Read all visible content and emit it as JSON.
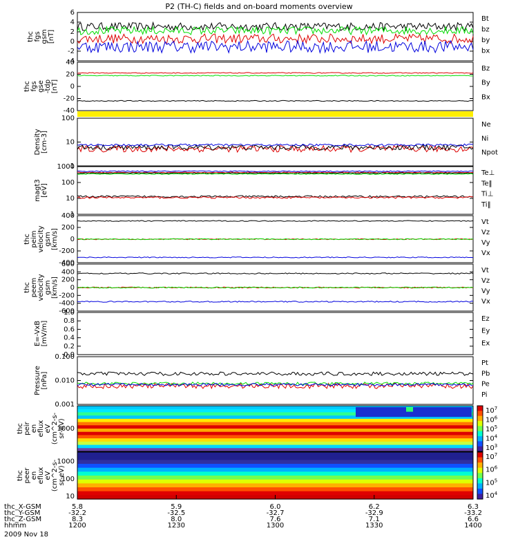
{
  "title": "P2 (TH-C) fields and on-board moments overview",
  "date": "2009 Nov 18",
  "colors": {
    "black": "#000000",
    "red": "#dd0000",
    "green": "#00dd00",
    "blue": "#0000dd",
    "yellow": "#ffee00"
  },
  "chart_data": [
    {
      "type": "line",
      "ylabel": [
        "thc",
        "fgs",
        "gsm",
        "[nT]"
      ],
      "yticks": [
        "6",
        "4",
        "2",
        "0",
        "-2",
        "-4"
      ],
      "ylim": [
        -5,
        7
      ],
      "series": [
        {
          "name": "Bt",
          "color": "black",
          "level": 3.5,
          "noise": 1.0
        },
        {
          "name": "bz",
          "color": "red",
          "level": 0.5,
          "noise": 1.2
        },
        {
          "name": "by",
          "color": "green",
          "level": 2.5,
          "noise": 1.0
        },
        {
          "name": "bx",
          "color": "blue",
          "level": -1.5,
          "noise": 1.5
        }
      ]
    },
    {
      "type": "line",
      "ylabel": [
        "thc",
        "fgs",
        "gse",
        "-tdp",
        "[nT]"
      ],
      "yticks": [
        "40",
        "20",
        "0",
        "-20",
        "-40"
      ],
      "ylim": [
        -50,
        40
      ],
      "series": [
        {
          "name": "Bz",
          "color": "red",
          "level": 20,
          "noise": 0.8
        },
        {
          "name": "By",
          "color": "green",
          "level": 15,
          "noise": 0.8
        },
        {
          "name": "Bx",
          "color": "black",
          "level": -32,
          "noise": 0.8
        }
      ]
    },
    {
      "type": "line",
      "ylabel": [
        "Density",
        "[cm-3]"
      ],
      "yticks": [
        "100",
        "10",
        "1"
      ],
      "log": true,
      "ylim": [
        1,
        150
      ],
      "series": [
        {
          "name": "Ne",
          "color": "red",
          "level": 6,
          "noise": 0.15
        },
        {
          "name": "Ni",
          "color": "black",
          "level": 7,
          "noise": 0.12
        },
        {
          "name": "Npot",
          "color": "blue",
          "level": 9,
          "noise": 0.05
        }
      ]
    },
    {
      "type": "line",
      "ylabel": [
        "magt3",
        "[eV]"
      ],
      "yticks": [
        "1000",
        "100",
        "10",
        "1"
      ],
      "log": true,
      "ylim": [
        1,
        1200
      ],
      "series": [
        {
          "name": "Te⊥",
          "color": "red",
          "level": 500,
          "noise": 0.03
        },
        {
          "name": "Te‖",
          "color": "black",
          "level": 450,
          "noise": 0.03
        },
        {
          "name": "Ti⊥",
          "color": "blue",
          "level": 600,
          "noise": 0.03
        },
        {
          "name": "Ti‖",
          "color": "green",
          "level": 400,
          "noise": 0.03
        },
        {
          "name": "",
          "color": "black",
          "level": 14,
          "noise": 0.06
        },
        {
          "name": "",
          "color": "red",
          "level": 12,
          "noise": 0.06
        }
      ]
    },
    {
      "type": "line",
      "ylabel": [
        "thc",
        "peim",
        "velocity",
        "gsm",
        "[km/s]"
      ],
      "yticks": [
        "400",
        "200",
        "0",
        "-200",
        "-400"
      ],
      "ylim": [
        -400,
        400
      ],
      "series": [
        {
          "name": "Vt",
          "color": "black",
          "level": 310,
          "noise": 8
        },
        {
          "name": "Vz",
          "color": "red",
          "level": 0,
          "noise": 8
        },
        {
          "name": "Vy",
          "color": "green",
          "level": 0,
          "noise": 8
        },
        {
          "name": "Vx",
          "color": "blue",
          "level": -310,
          "noise": 8
        }
      ]
    },
    {
      "type": "line",
      "ylabel": [
        "thc",
        "peem",
        "velocity",
        "gsm",
        "[km/s]"
      ],
      "yticks": [
        "600",
        "400",
        "200",
        "0",
        "-200",
        "-400",
        "-600"
      ],
      "ylim": [
        -600,
        600
      ],
      "series": [
        {
          "name": "Vt",
          "color": "black",
          "level": 360,
          "noise": 15
        },
        {
          "name": "Vz",
          "color": "red",
          "level": 0,
          "noise": 15
        },
        {
          "name": "Vy",
          "color": "green",
          "level": 0,
          "noise": 15
        },
        {
          "name": "Vx",
          "color": "blue",
          "level": -360,
          "noise": 15
        }
      ]
    },
    {
      "type": "line",
      "ylabel": [
        "E=-VxB",
        "[mV/m]"
      ],
      "yticks": [
        "1.0",
        "0.8",
        "0.6",
        "0.4",
        "0.2",
        "0.0"
      ],
      "ylim": [
        0,
        1
      ],
      "series": [
        {
          "name": "Ez",
          "color": "red"
        },
        {
          "name": "Ey",
          "color": "green"
        },
        {
          "name": "Ex",
          "color": "blue"
        }
      ]
    },
    {
      "type": "line",
      "ylabel": [
        "Pressure",
        "[nPa]"
      ],
      "yticks": [
        "0.100",
        "0.010",
        "0.001"
      ],
      "log": true,
      "ylim": [
        0.001,
        0.15
      ],
      "series": [
        {
          "name": "Pt",
          "color": "black",
          "level": 0.025,
          "noise": 0.08
        },
        {
          "name": "Pb",
          "color": "red",
          "level": 0.007,
          "noise": 0.12
        },
        {
          "name": "Pe",
          "color": "green",
          "level": 0.009,
          "noise": 0.06
        },
        {
          "name": "Pi",
          "color": "blue",
          "level": 0.008,
          "noise": 0.06
        }
      ]
    },
    {
      "type": "heatmap",
      "ylabel": [
        "thc",
        "peir",
        "en",
        "eflux",
        "eV",
        "(cm^2-s-",
        "sr-eV)"
      ],
      "yticks": [
        "1000"
      ],
      "colorbar": [
        "10^7",
        "10^6",
        "10^5",
        "10^4",
        "10^3"
      ]
    },
    {
      "type": "heatmap",
      "ylabel": [
        "thc",
        "peer",
        "en",
        "eflux",
        "eV",
        "(cm^2-s-",
        "sr-eV)"
      ],
      "yticks": [
        "1000",
        "100",
        "10"
      ],
      "colorbar": [
        "10^7",
        "10^6",
        "10^5",
        "10^4"
      ]
    }
  ],
  "x_axis": {
    "ticks": [
      "1200",
      "1230",
      "1300",
      "1330",
      "1400"
    ],
    "rows": [
      {
        "label": "thc_X-GSM",
        "values": [
          "5.8",
          "5.9",
          "6.0",
          "6.2",
          "6.3"
        ]
      },
      {
        "label": "thc_Y-GSM",
        "values": [
          "-32.2",
          "-32.5",
          "-32.7",
          "-32.9",
          "-33.2"
        ]
      },
      {
        "label": "thc_Z-GSM",
        "values": [
          "8.3",
          "8.0",
          "7.6",
          "7.1",
          "6.6"
        ]
      },
      {
        "label": "hhmm",
        "values": [
          "1200",
          "1230",
          "1300",
          "1330",
          "1400"
        ]
      }
    ]
  }
}
